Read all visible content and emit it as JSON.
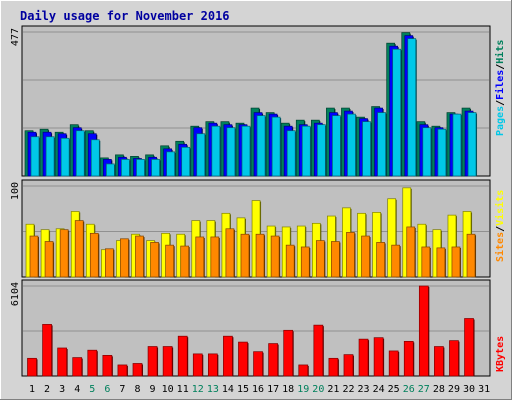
{
  "title": "Daily usage for November 2016",
  "colors": {
    "hits": "#00805C",
    "files": "#0000FF",
    "pages": "#00C8E8",
    "visits": "#FFFF00",
    "sites": "#FF8800",
    "kbytes": "#FF0000",
    "title": "#0000A0",
    "plot_bg": "#C0C0C0",
    "frame_bg": "#D4D4D4",
    "weekend_label": "#00805C"
  },
  "chart_data": [
    {
      "type": "bar",
      "name": "hits-files-pages",
      "ymax_label": "477",
      "ylim": [
        0,
        477
      ],
      "legend": [
        "Pages",
        "Files",
        "Hits"
      ],
      "legend_colors": [
        "#00C8E8",
        "#0000FF",
        "#00805C"
      ],
      "categories": [
        "1",
        "2",
        "3",
        "4",
        "5",
        "6",
        "7",
        "8",
        "9",
        "10",
        "11",
        "12",
        "13",
        "14",
        "15",
        "16",
        "17",
        "18",
        "19",
        "20",
        "21",
        "22",
        "23",
        "24",
        "25",
        "26",
        "27",
        "28",
        "29",
        "30",
        "31"
      ],
      "series": [
        {
          "name": "Hits",
          "values": [
            150,
            155,
            145,
            170,
            150,
            60,
            70,
            65,
            70,
            100,
            115,
            165,
            180,
            180,
            175,
            225,
            210,
            175,
            185,
            185,
            225,
            225,
            195,
            230,
            440,
            475,
            180,
            165,
            210,
            225,
            0
          ]
        },
        {
          "name": "Files",
          "values": [
            145,
            145,
            140,
            160,
            140,
            55,
            62,
            58,
            62,
            90,
            105,
            160,
            175,
            170,
            170,
            210,
            205,
            165,
            170,
            175,
            210,
            215,
            190,
            225,
            430,
            465,
            170,
            160,
            205,
            215,
            0
          ]
        },
        {
          "name": "Pages",
          "values": [
            130,
            130,
            125,
            150,
            120,
            40,
            55,
            55,
            55,
            80,
            95,
            140,
            165,
            160,
            165,
            200,
            195,
            150,
            165,
            170,
            200,
            205,
            180,
            210,
            420,
            455,
            160,
            155,
            205,
            210,
            0
          ]
        }
      ]
    },
    {
      "type": "bar",
      "name": "visits-sites",
      "ymax_label": "100",
      "ylim": [
        0,
        100
      ],
      "legend": [
        "Sites",
        "Visits"
      ],
      "legend_colors": [
        "#FF8800",
        "#FFFF00"
      ],
      "categories": [
        "1",
        "2",
        "3",
        "4",
        "5",
        "6",
        "7",
        "8",
        "9",
        "10",
        "11",
        "12",
        "13",
        "14",
        "15",
        "16",
        "17",
        "18",
        "19",
        "20",
        "21",
        "22",
        "23",
        "24",
        "25",
        "26",
        "27",
        "28",
        "29",
        "30",
        "31"
      ],
      "series": [
        {
          "name": "Visits",
          "values": [
            58,
            52,
            53,
            72,
            58,
            30,
            40,
            47,
            40,
            48,
            47,
            62,
            62,
            70,
            65,
            84,
            56,
            55,
            56,
            59,
            67,
            76,
            70,
            71,
            86,
            98,
            58,
            52,
            68,
            72,
            0
          ]
        },
        {
          "name": "Sites",
          "values": [
            45,
            39,
            52,
            62,
            48,
            31,
            42,
            45,
            38,
            35,
            34,
            44,
            44,
            53,
            47,
            47,
            45,
            35,
            33,
            40,
            39,
            49,
            45,
            38,
            35,
            55,
            33,
            32,
            33,
            47,
            0
          ]
        }
      ]
    },
    {
      "type": "bar",
      "name": "kbytes",
      "ymax_label": "6104",
      "ylim": [
        0,
        6104
      ],
      "legend": [
        "KBytes"
      ],
      "legend_colors": [
        "#FF0000"
      ],
      "categories": [
        "1",
        "2",
        "3",
        "4",
        "5",
        "6",
        "7",
        "8",
        "9",
        "10",
        "11",
        "12",
        "13",
        "14",
        "15",
        "16",
        "17",
        "18",
        "19",
        "20",
        "21",
        "22",
        "23",
        "24",
        "25",
        "26",
        "27",
        "28",
        "29",
        "30",
        "31"
      ],
      "series": [
        {
          "name": "KBytes",
          "values": [
            1200,
            3500,
            1900,
            1250,
            1750,
            1400,
            750,
            850,
            2000,
            2000,
            2700,
            1500,
            1500,
            2700,
            2300,
            1650,
            2200,
            3100,
            750,
            3450,
            1200,
            1450,
            2500,
            2600,
            1700,
            2350,
            6104,
            2000,
            2400,
            3900,
            0
          ]
        }
      ]
    }
  ],
  "x_labels": [
    "1",
    "2",
    "3",
    "4",
    "5",
    "6",
    "7",
    "8",
    "9",
    "10",
    "11",
    "12",
    "13",
    "14",
    "15",
    "16",
    "17",
    "18",
    "19",
    "20",
    "21",
    "22",
    "23",
    "24",
    "25",
    "26",
    "27",
    "28",
    "29",
    "30",
    "31"
  ],
  "weekend_days": [
    "5",
    "6",
    "12",
    "13",
    "19",
    "20",
    "26",
    "27"
  ]
}
